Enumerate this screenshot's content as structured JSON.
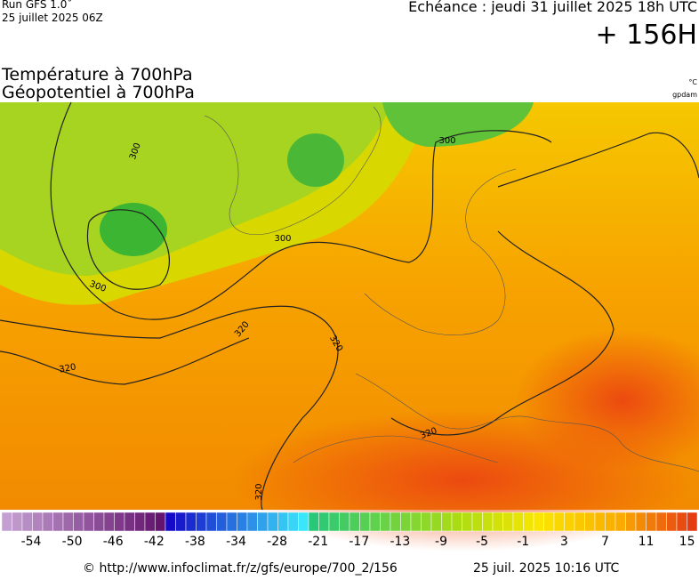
{
  "header": {
    "run": "Run GFS 1.0˚",
    "run_date": "25 juillet 2025 06Z",
    "echeance": "Echéance : jeudi 31 juillet 2025 18h UTC",
    "lead": "+ 156H"
  },
  "titles": {
    "temperature": "Température à 700hPa",
    "geopotential": "Géopotentiel à 700hPa",
    "unit_temp": "°C",
    "unit_geo": "gpdam"
  },
  "contour_labels": [
    "300",
    "300",
    "300",
    "300",
    "320",
    "320",
    "320",
    "320",
    "320"
  ],
  "colorbar": {
    "labels": [
      -54,
      -50,
      -46,
      -42,
      -38,
      -34,
      -28,
      -21,
      -17,
      -13,
      -9,
      -5,
      -1,
      3,
      7,
      11,
      15
    ]
  },
  "footer": {
    "source": "© http://www.infoclimat.fr/z/gfs/europe/700_2/156",
    "generated": "25 juil. 2025 10:16 UTC"
  }
}
